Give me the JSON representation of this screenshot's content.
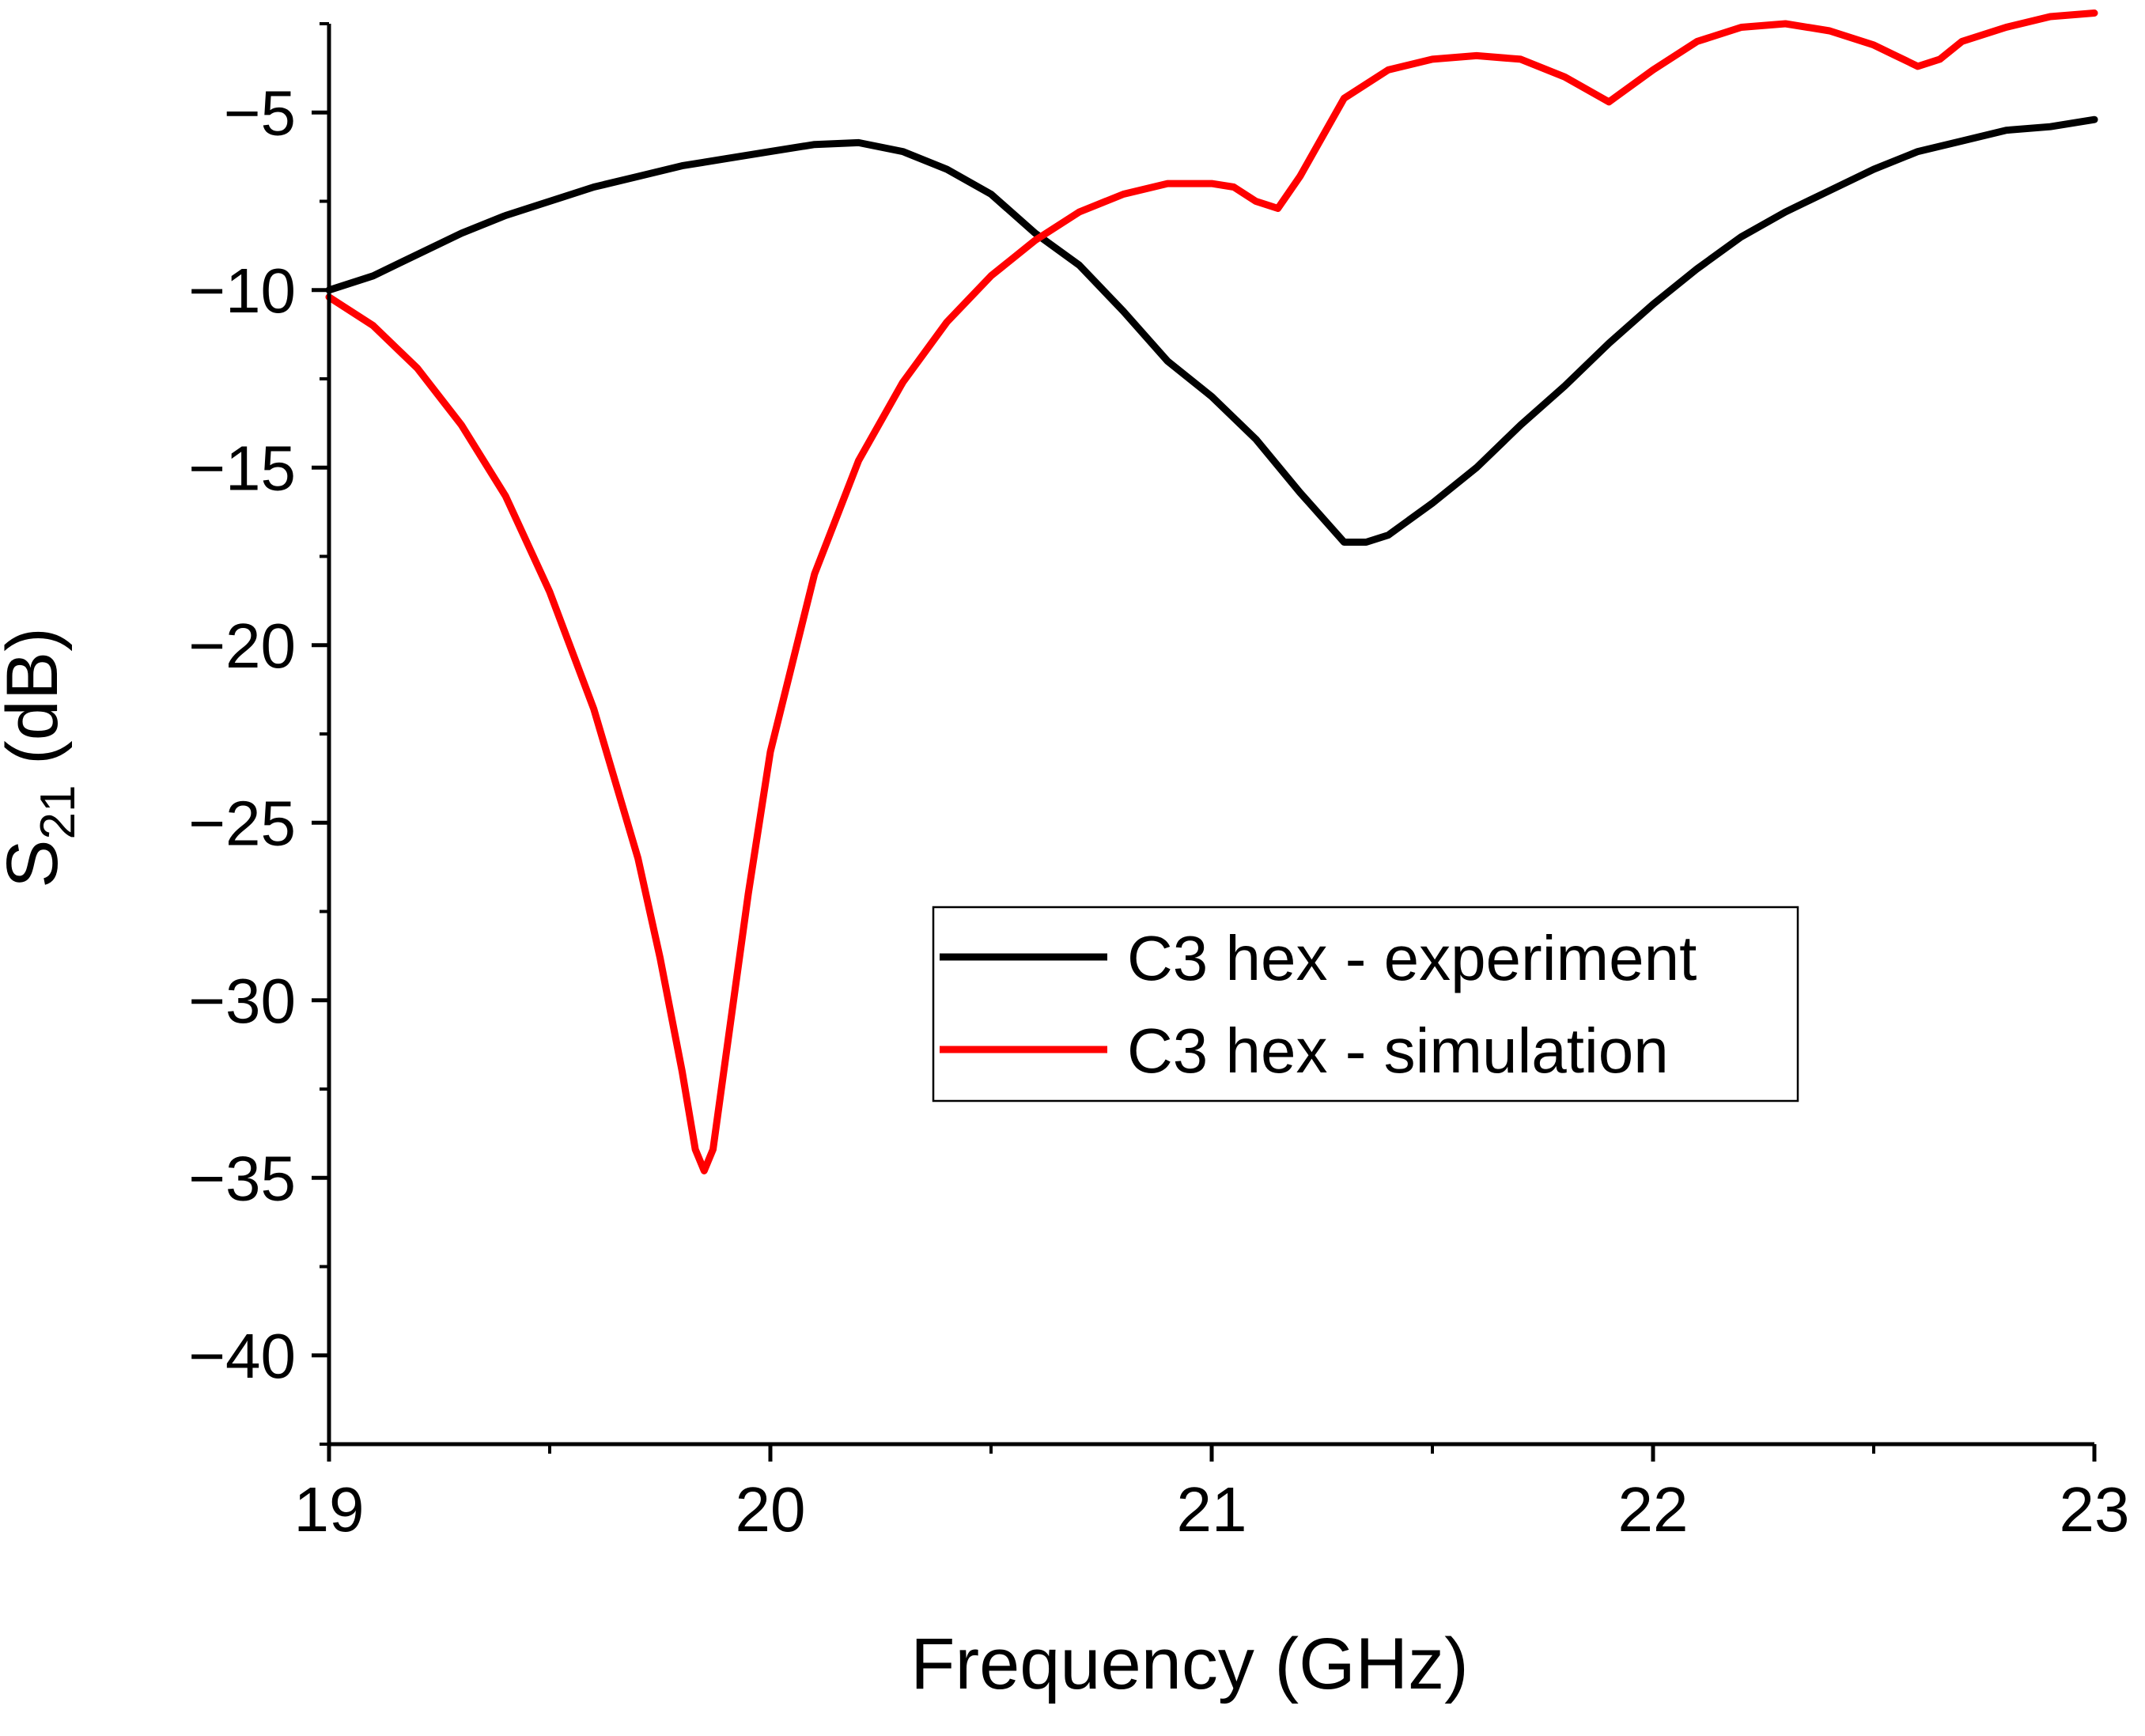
{
  "chart_data": {
    "type": "line",
    "title": "",
    "xlabel": "Frequency (GHz)",
    "ylabel": {
      "main": "S",
      "subscript": "21",
      "unit": " (dB)"
    },
    "xlim": [
      19,
      23
    ],
    "ylim": [
      -42.5,
      -2.5
    ],
    "x_ticks": [
      19,
      20,
      21,
      22,
      23
    ],
    "x_tick_labels": [
      "19",
      "20",
      "21",
      "22",
      "23"
    ],
    "y_ticks": [
      -40,
      -35,
      -30,
      -25,
      -20,
      -15,
      -10,
      -5
    ],
    "y_tick_labels": [
      "−40",
      "−35",
      "−30",
      "−25",
      "−20",
      "−15",
      "−10",
      "−5"
    ],
    "grid": false,
    "legend_position": "center-right",
    "series": [
      {
        "name": "C3 hex - experiment",
        "color": "#000000",
        "x": [
          19.0,
          19.1,
          19.2,
          19.3,
          19.4,
          19.5,
          19.6,
          19.7,
          19.8,
          19.9,
          20.0,
          20.1,
          20.2,
          20.3,
          20.4,
          20.5,
          20.6,
          20.7,
          20.8,
          20.9,
          21.0,
          21.1,
          21.2,
          21.3,
          21.35,
          21.4,
          21.5,
          21.6,
          21.7,
          21.8,
          21.9,
          22.0,
          22.1,
          22.2,
          22.3,
          22.4,
          22.5,
          22.6,
          22.7,
          22.8,
          22.9,
          23.0
        ],
        "y": [
          -10.0,
          -9.6,
          -9.0,
          -8.4,
          -7.9,
          -7.5,
          -7.1,
          -6.8,
          -6.5,
          -6.3,
          -6.1,
          -5.9,
          -5.85,
          -6.1,
          -6.6,
          -7.3,
          -8.4,
          -9.3,
          -10.6,
          -12.0,
          -13.0,
          -14.2,
          -15.7,
          -17.1,
          -17.1,
          -16.9,
          -16.0,
          -15.0,
          -13.8,
          -12.7,
          -11.5,
          -10.4,
          -9.4,
          -8.5,
          -7.8,
          -7.2,
          -6.6,
          -6.1,
          -5.8,
          -5.5,
          -5.4,
          -5.2
        ]
      },
      {
        "name": "C3 hex - simulation",
        "color": "#ff0000",
        "x": [
          19.0,
          19.1,
          19.2,
          19.3,
          19.4,
          19.5,
          19.6,
          19.7,
          19.75,
          19.8,
          19.83,
          19.85,
          19.87,
          19.9,
          19.95,
          20.0,
          20.1,
          20.2,
          20.3,
          20.4,
          20.5,
          20.6,
          20.7,
          20.8,
          20.9,
          21.0,
          21.05,
          21.1,
          21.15,
          21.2,
          21.3,
          21.4,
          21.5,
          21.6,
          21.7,
          21.8,
          21.9,
          22.0,
          22.1,
          22.2,
          22.3,
          22.4,
          22.5,
          22.55,
          22.6,
          22.65,
          22.7,
          22.8,
          22.9,
          23.0
        ],
        "y": [
          -10.2,
          -11.0,
          -12.2,
          -13.8,
          -15.8,
          -18.5,
          -21.8,
          -26.0,
          -28.8,
          -32.0,
          -34.2,
          -34.8,
          -34.2,
          -31.5,
          -27.0,
          -23.0,
          -18.0,
          -14.8,
          -12.6,
          -10.9,
          -9.6,
          -8.6,
          -7.8,
          -7.3,
          -7.0,
          -7.0,
          -7.1,
          -7.5,
          -7.7,
          -6.8,
          -4.6,
          -3.8,
          -3.5,
          -3.4,
          -3.5,
          -4.0,
          -4.7,
          -3.8,
          -3.0,
          -2.6,
          -2.5,
          -2.7,
          -3.1,
          -3.4,
          -3.7,
          -3.5,
          -3.0,
          -2.6,
          -2.3,
          -2.2
        ]
      }
    ]
  }
}
